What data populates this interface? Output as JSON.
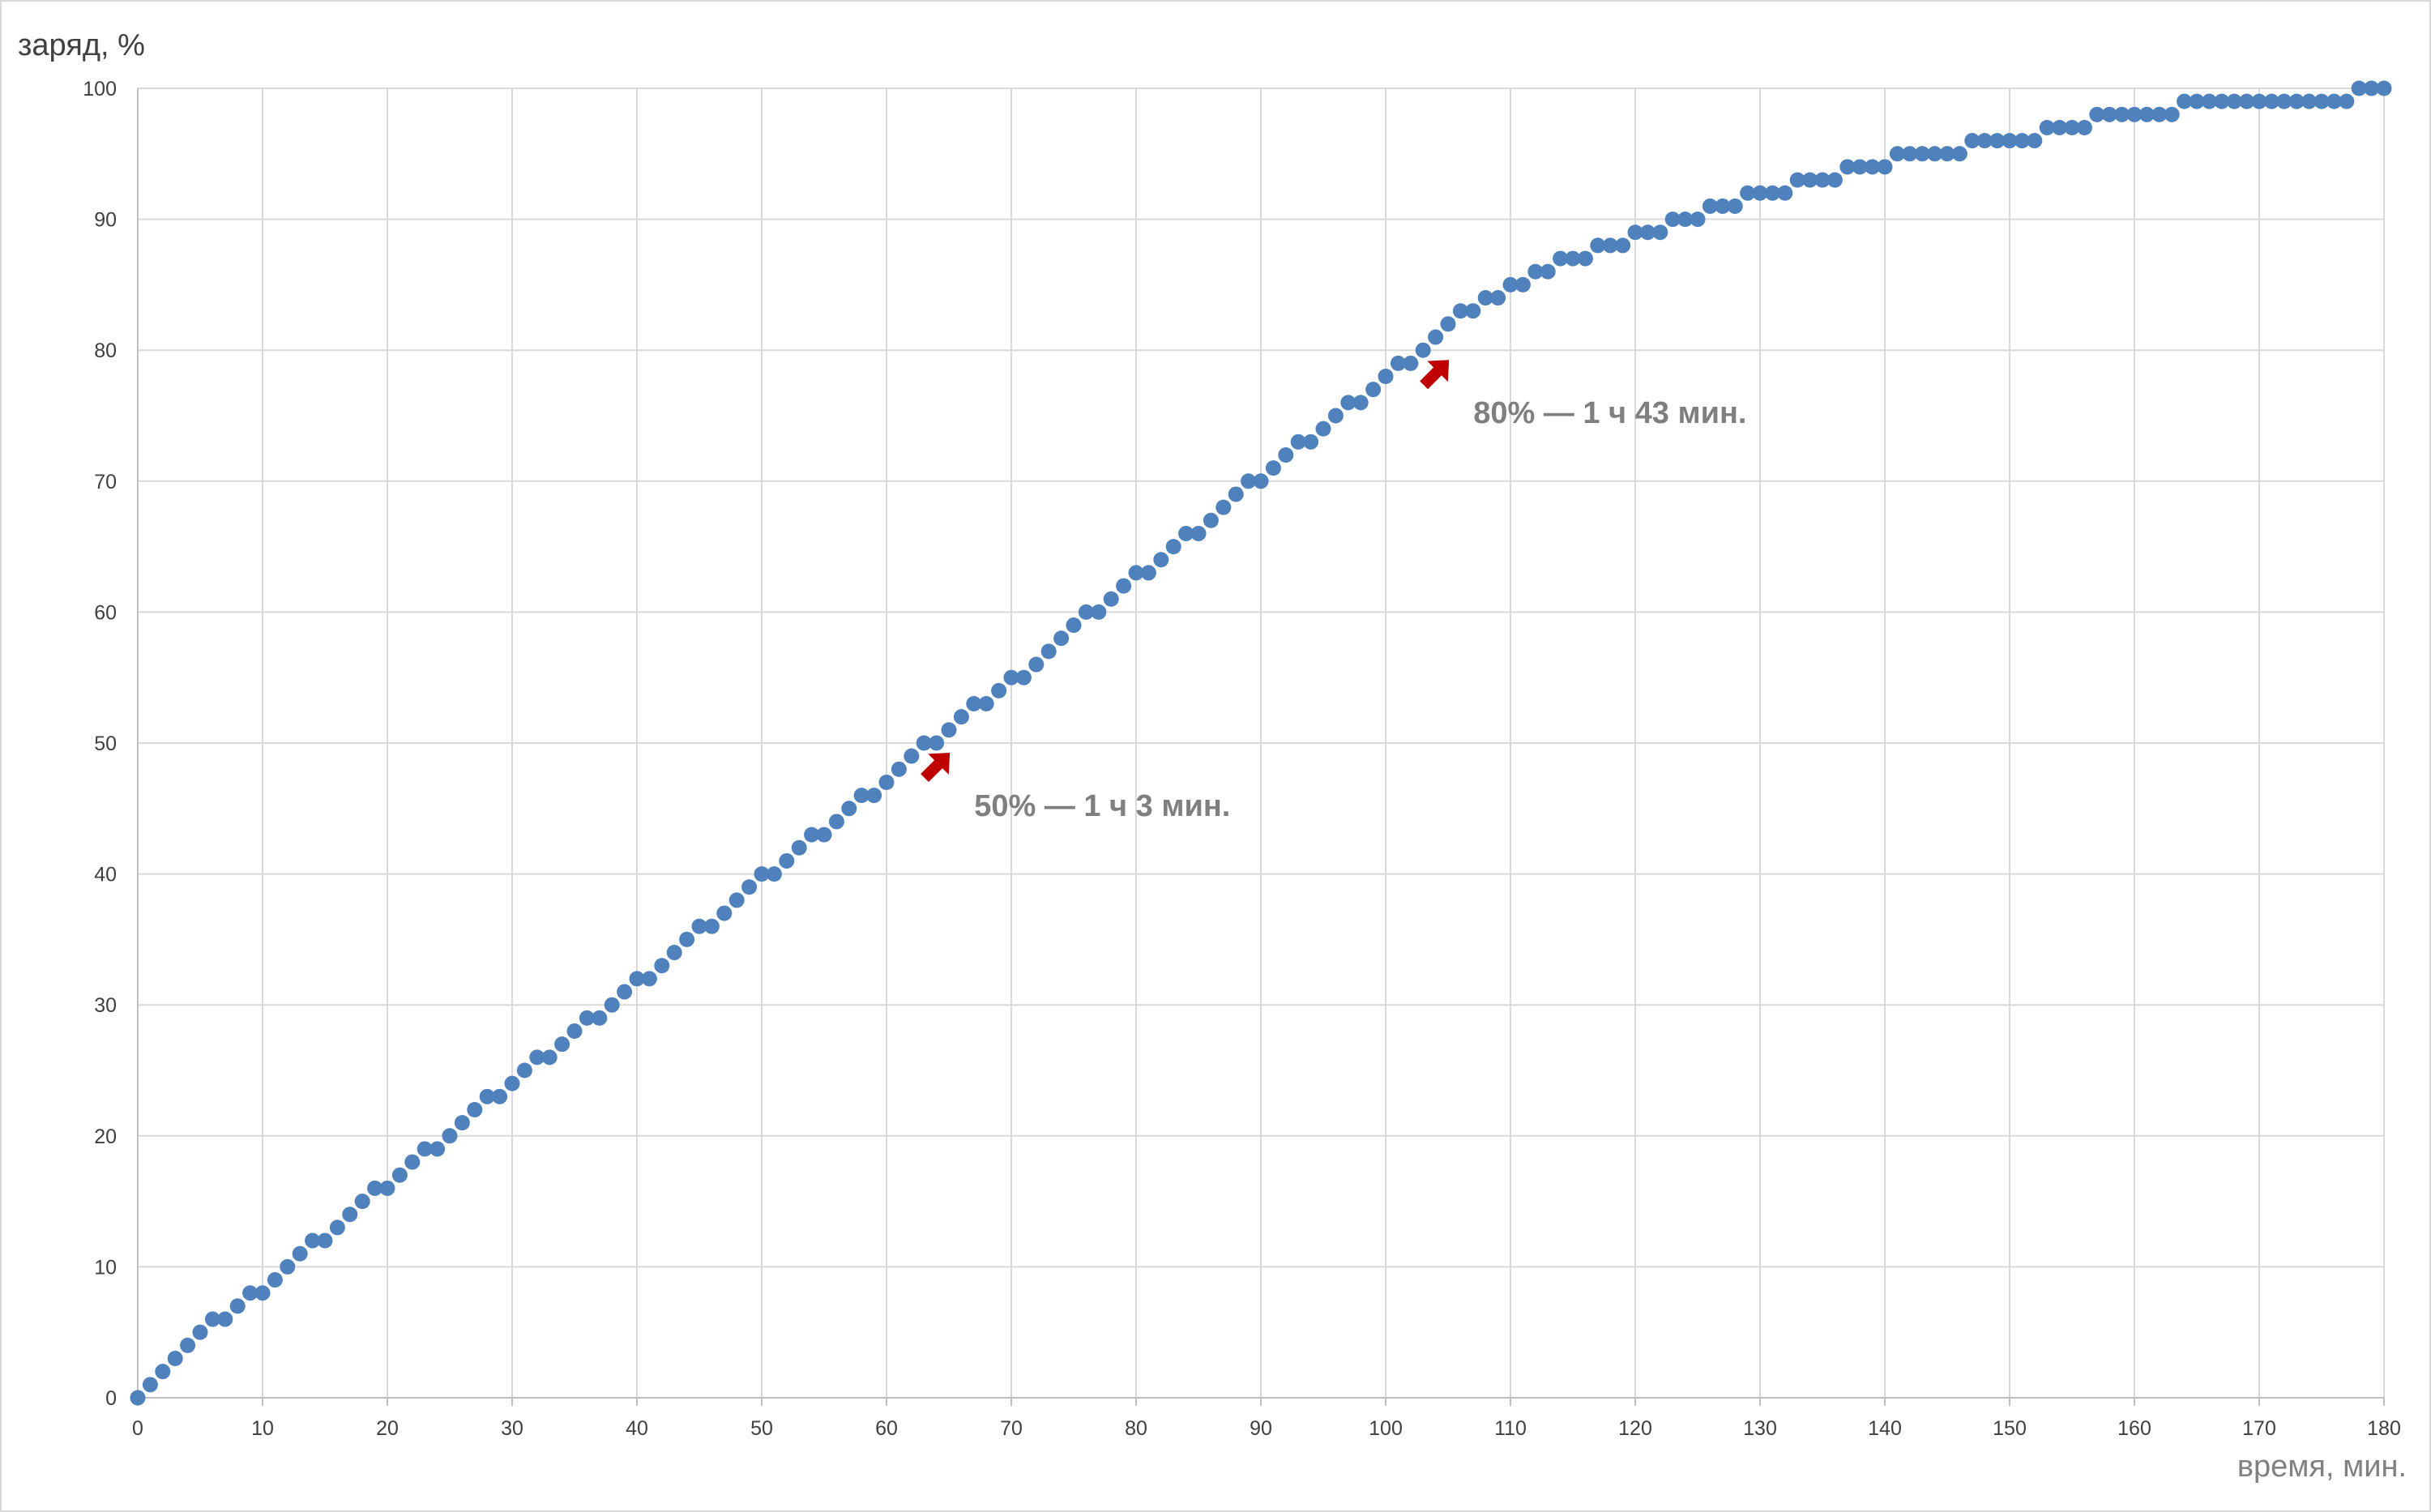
{
  "chart_data": {
    "type": "scatter",
    "xlabel": "время, мин.",
    "ylabel": "заряд, %",
    "xlim": [
      0,
      180
    ],
    "ylim": [
      0,
      100
    ],
    "x_ticks": [
      0,
      10,
      20,
      30,
      40,
      50,
      60,
      70,
      80,
      90,
      100,
      110,
      120,
      130,
      140,
      150,
      160,
      170,
      180
    ],
    "y_ticks": [
      0,
      10,
      20,
      30,
      40,
      50,
      60,
      70,
      80,
      90,
      100
    ],
    "grid": true,
    "legend": "none",
    "marker_color": "#4f81bd",
    "annotation_color": "#c00000",
    "series": [
      {
        "x": [
          0,
          1,
          2,
          3,
          4,
          5,
          6,
          7,
          8,
          9,
          10,
          11,
          12,
          13,
          14,
          15,
          16,
          17,
          18,
          19,
          20,
          21,
          22,
          23,
          24,
          25,
          26,
          27,
          28,
          29,
          30,
          31,
          32,
          33,
          34,
          35,
          36,
          37,
          38,
          39,
          40,
          41,
          42,
          43,
          44,
          45,
          46,
          47,
          48,
          49,
          50,
          51,
          52,
          53,
          54,
          55,
          56,
          57,
          58,
          59,
          60,
          61,
          62,
          63,
          64,
          65,
          66,
          67,
          68,
          69,
          70,
          71,
          72,
          73,
          74,
          75,
          76,
          77,
          78,
          79,
          80,
          81,
          82,
          83,
          84,
          85,
          86,
          87,
          88,
          89,
          90,
          91,
          92,
          93,
          94,
          95,
          96,
          97,
          98,
          99,
          100,
          101,
          102,
          103,
          104,
          105,
          106,
          107,
          108,
          109,
          110,
          111,
          112,
          113,
          114,
          115,
          116,
          117,
          118,
          119,
          120,
          121,
          122,
          123,
          124,
          125,
          126,
          127,
          128,
          129,
          130,
          131,
          132,
          133,
          134,
          135,
          136,
          137,
          138,
          139,
          140,
          141,
          142,
          143,
          144,
          145,
          146,
          147,
          148,
          149,
          150,
          151,
          152,
          153,
          154,
          155,
          156,
          157,
          158,
          159,
          160,
          161,
          162,
          163,
          164,
          165,
          166,
          167,
          168,
          169,
          170,
          171,
          172,
          173,
          174,
          175,
          176,
          177,
          178,
          179,
          180
        ],
        "y": [
          0,
          1,
          2,
          3,
          4,
          5,
          6,
          6,
          7,
          8,
          8,
          9,
          10,
          11,
          12,
          12,
          13,
          14,
          15,
          16,
          16,
          17,
          18,
          19,
          19,
          20,
          21,
          22,
          23,
          23,
          24,
          25,
          26,
          26,
          27,
          28,
          29,
          29,
          30,
          31,
          32,
          32,
          33,
          34,
          35,
          36,
          36,
          37,
          38,
          39,
          40,
          40,
          41,
          42,
          43,
          43,
          44,
          45,
          46,
          46,
          47,
          48,
          49,
          50,
          50,
          51,
          52,
          53,
          53,
          54,
          55,
          55,
          56,
          57,
          58,
          59,
          60,
          60,
          61,
          62,
          63,
          63,
          64,
          65,
          66,
          66,
          67,
          68,
          69,
          70,
          70,
          71,
          72,
          73,
          73,
          74,
          75,
          76,
          76,
          77,
          78,
          79,
          79,
          80,
          81,
          82,
          83,
          83,
          84,
          84,
          85,
          85,
          86,
          86,
          87,
          87,
          87,
          88,
          88,
          88,
          89,
          89,
          89,
          90,
          90,
          90,
          91,
          91,
          91,
          92,
          92,
          92,
          92,
          93,
          93,
          93,
          93,
          94,
          94,
          94,
          94,
          95,
          95,
          95,
          95,
          95,
          95,
          96,
          96,
          96,
          96,
          96,
          96,
          97,
          97,
          97,
          97,
          98,
          98,
          98,
          98,
          98,
          98,
          98,
          99,
          99,
          99,
          99,
          99,
          99,
          99,
          99,
          99,
          99,
          99,
          99,
          99,
          99,
          100,
          100,
          100
        ]
      }
    ],
    "annotations": [
      {
        "text": "50% — 1 ч 3 мин.",
        "x": 63,
        "y": 50
      },
      {
        "text": "80% — 1 ч 43 мин.",
        "x": 103,
        "y": 80
      }
    ]
  }
}
